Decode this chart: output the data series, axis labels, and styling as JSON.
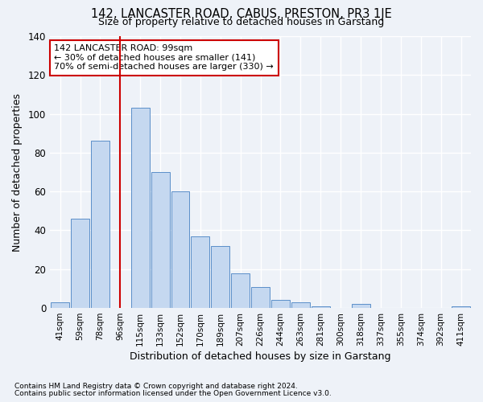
{
  "title": "142, LANCASTER ROAD, CABUS, PRESTON, PR3 1JE",
  "subtitle": "Size of property relative to detached houses in Garstang",
  "xlabel": "Distribution of detached houses by size in Garstang",
  "ylabel": "Number of detached properties",
  "bar_labels": [
    "41sqm",
    "59sqm",
    "78sqm",
    "96sqm",
    "115sqm",
    "133sqm",
    "152sqm",
    "170sqm",
    "189sqm",
    "207sqm",
    "226sqm",
    "244sqm",
    "263sqm",
    "281sqm",
    "300sqm",
    "318sqm",
    "337sqm",
    "355sqm",
    "374sqm",
    "392sqm",
    "411sqm"
  ],
  "bar_values": [
    3,
    46,
    86,
    0,
    103,
    70,
    60,
    37,
    32,
    18,
    11,
    4,
    3,
    1,
    0,
    2,
    0,
    0,
    0,
    0,
    1
  ],
  "bar_color": "#c5d8f0",
  "bar_edge_color": "#5b8fc9",
  "vline_index": 3,
  "vline_color": "#cc0000",
  "annotation_lines": [
    "142 LANCASTER ROAD: 99sqm",
    "← 30% of detached houses are smaller (141)",
    "70% of semi-detached houses are larger (330) →"
  ],
  "annotation_box_color": "#ffffff",
  "annotation_box_edge": "#cc0000",
  "footnote1": "Contains HM Land Registry data © Crown copyright and database right 2024.",
  "footnote2": "Contains public sector information licensed under the Open Government Licence v3.0.",
  "bg_color": "#eef2f8",
  "grid_color": "#ffffff",
  "ylim": [
    0,
    140
  ],
  "yticks": [
    0,
    20,
    40,
    60,
    80,
    100,
    120,
    140
  ]
}
